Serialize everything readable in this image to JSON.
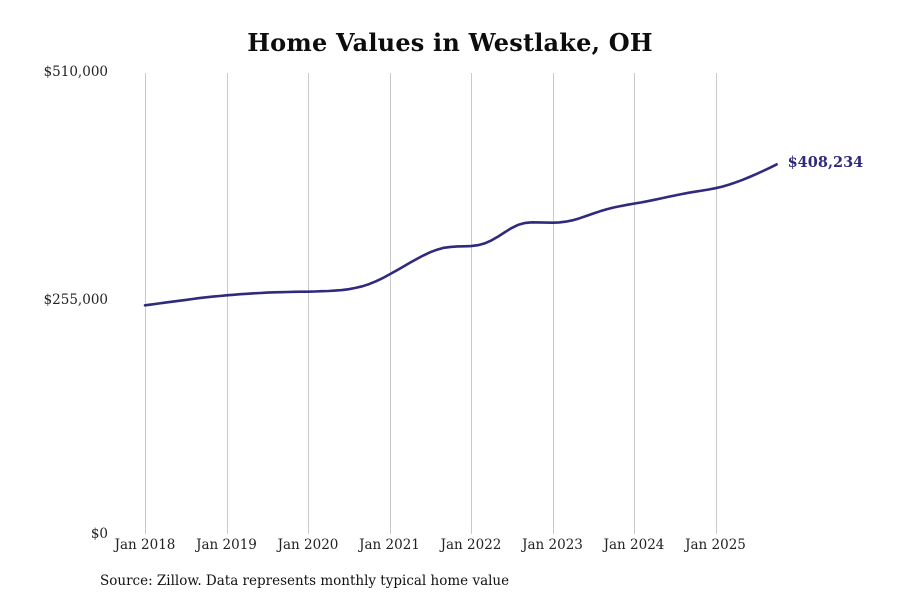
{
  "page": {
    "title": "Home Values in Westlake, OH",
    "source_note": "Source: Zillow. Data represents monthly typical home value"
  },
  "chart_data": {
    "type": "line",
    "title": "Home Values in Westlake, OH",
    "series_name": "Monthly typical home value",
    "x_unit": "month",
    "x_start": "Jan 2018",
    "x_end": "Oct 2025",
    "x_tick_labels": [
      "Jan 2018",
      "Jan 2019",
      "Jan 2020",
      "Jan 2021",
      "Jan 2022",
      "Jan 2023",
      "Jan 2024",
      "Jan 2025"
    ],
    "y_tick_labels": [
      "$510,000",
      "$255,000",
      "$0"
    ],
    "y_ticks": [
      510000,
      255000,
      0
    ],
    "ylim": [
      0,
      510000
    ],
    "grid": "vertical-only",
    "legend": "none",
    "line_color": "#2f2a7d",
    "grid_color": "#c9c9c9",
    "end_label": "$408,234",
    "end_value": 408234,
    "values": [
      253000,
      254000,
      255000,
      256000,
      257000,
      258000,
      259000,
      260000,
      261000,
      261800,
      262600,
      263300,
      264000,
      264600,
      265200,
      265700,
      266200,
      266600,
      267000,
      267300,
      267500,
      267700,
      267850,
      267950,
      268000,
      268200,
      268500,
      268800,
      269200,
      269800,
      270800,
      272200,
      274000,
      276400,
      279400,
      283000,
      287000,
      291200,
      295500,
      299800,
      304000,
      308000,
      311500,
      314300,
      316300,
      317400,
      317900,
      318000,
      318200,
      319200,
      321200,
      324500,
      328800,
      333600,
      338300,
      341800,
      343800,
      344400,
      344300,
      344100,
      344000,
      344300,
      345200,
      346800,
      349000,
      351500,
      354100,
      356600,
      358800,
      360700,
      362300,
      363700,
      365000,
      366300,
      367700,
      369200,
      370800,
      372400,
      374000,
      375500,
      376900,
      378200,
      379400,
      380600,
      382000,
      383800,
      386000,
      388500,
      391300,
      394300,
      397500,
      400900,
      404500,
      408234
    ]
  }
}
